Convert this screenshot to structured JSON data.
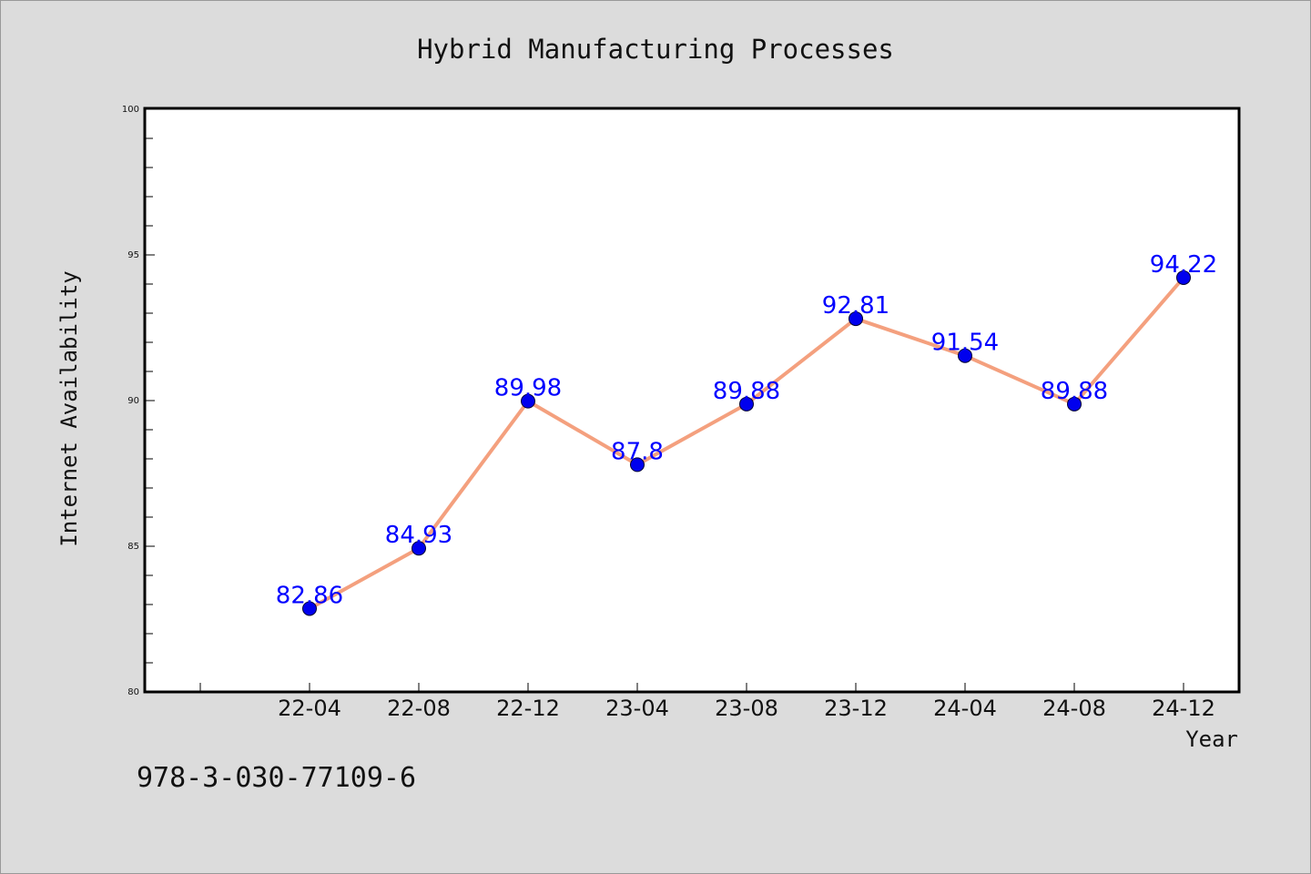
{
  "chart_data": {
    "type": "line",
    "title": "Hybrid Manufacturing Processes",
    "xlabel": "Year",
    "ylabel": "Internet Availability",
    "categories": [
      "22-04",
      "22-08",
      "22-12",
      "23-04",
      "23-08",
      "23-12",
      "24-04",
      "24-08",
      "24-12"
    ],
    "values": [
      82.86,
      84.93,
      89.98,
      87.8,
      89.88,
      92.81,
      91.54,
      89.88,
      94.22
    ],
    "data_labels": [
      "82.86",
      "84.93",
      "89.98",
      "87.8",
      "89.88",
      "92.81",
      "91.54",
      "89.88",
      "94.22"
    ],
    "ylim": [
      80,
      100
    ],
    "yticks": [
      80,
      85,
      90,
      95,
      100
    ],
    "grid": false,
    "legend": "none",
    "colors": {
      "line": "#f4a07e",
      "marker": "#0000ee",
      "data_label": "#0000ff",
      "plot_background": "#ffffff",
      "page_background": "#dcdcdc"
    }
  },
  "footer": {
    "isbn": "978-3-030-77109-6"
  }
}
